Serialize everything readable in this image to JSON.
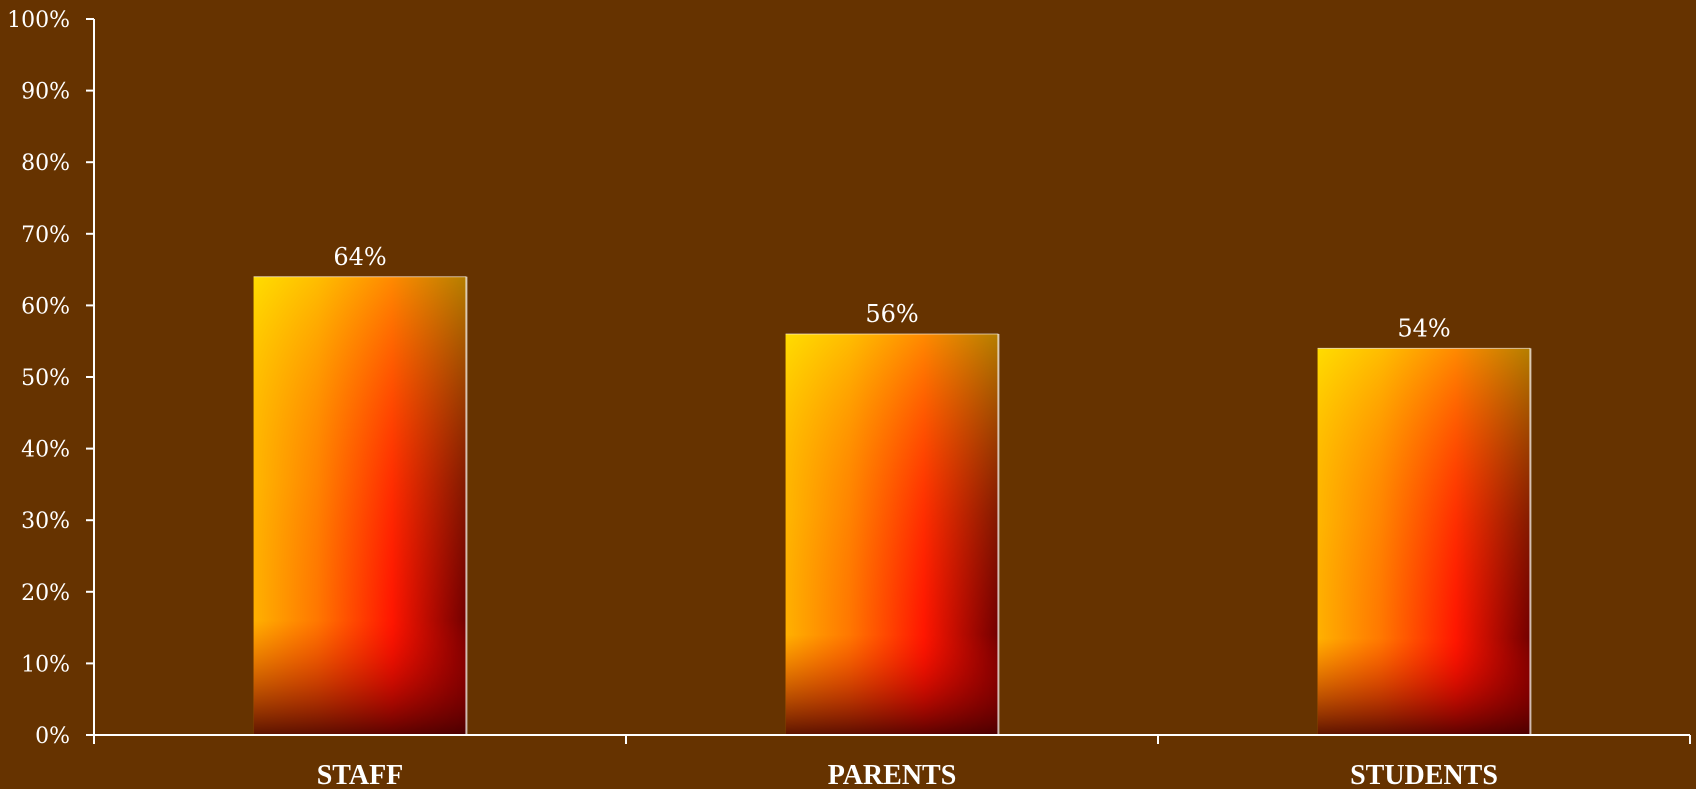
{
  "chart_data": {
    "type": "bar",
    "categories": [
      "STAFF",
      "PARENTS",
      "STUDENTS"
    ],
    "values": [
      64,
      56,
      54
    ],
    "value_labels": [
      "64%",
      "56%",
      "54%"
    ],
    "ylim": [
      0,
      100
    ],
    "yticks": [
      0,
      10,
      20,
      30,
      40,
      50,
      60,
      70,
      80,
      90,
      100
    ],
    "ytick_labels": [
      "0%",
      "10%",
      "20%",
      "30%",
      "40%",
      "50%",
      "60%",
      "70%",
      "80%",
      "90%",
      "100%"
    ],
    "grid": false,
    "legend": "none"
  },
  "colors": {
    "background": "#663300",
    "axis": "#ffffff",
    "bar_gradient": [
      "#ffe600",
      "#ffa200",
      "#ff5a00",
      "#ff0a00",
      "#b00000",
      "#5a0000"
    ]
  }
}
